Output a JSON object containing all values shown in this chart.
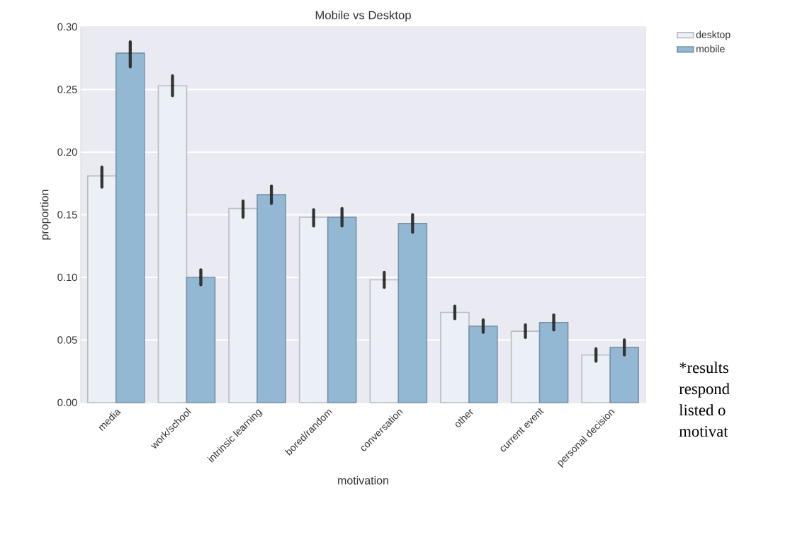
{
  "chart_data": {
    "type": "bar",
    "title": "Mobile vs Desktop",
    "xlabel": "motivation",
    "ylabel": "proportion",
    "categories": [
      "media",
      "work/school",
      "intrinsic learning",
      "bored/random",
      "conversation",
      "other",
      "current event",
      "personal decision"
    ],
    "series": [
      {
        "name": "desktop",
        "color": "#eaf0f5",
        "values": [
          0.181,
          0.253,
          0.155,
          0.148,
          0.098,
          0.072,
          0.057,
          0.038
        ],
        "errors": [
          [
            0.172,
            0.188
          ],
          [
            0.245,
            0.261
          ],
          [
            0.148,
            0.161
          ],
          [
            0.141,
            0.154
          ],
          [
            0.092,
            0.104
          ],
          [
            0.067,
            0.077
          ],
          [
            0.052,
            0.062
          ],
          [
            0.033,
            0.043
          ]
        ]
      },
      {
        "name": "mobile",
        "color": "#92b8d3",
        "values": [
          0.279,
          0.1,
          0.166,
          0.148,
          0.143,
          0.061,
          0.064,
          0.044
        ],
        "errors": [
          [
            0.268,
            0.288
          ],
          [
            0.094,
            0.106
          ],
          [
            0.159,
            0.173
          ],
          [
            0.141,
            0.155
          ],
          [
            0.136,
            0.15
          ],
          [
            0.056,
            0.066
          ],
          [
            0.058,
            0.07
          ],
          [
            0.038,
            0.05
          ]
        ]
      }
    ],
    "ylim": [
      0,
      0.3
    ],
    "yticks": [
      {
        "value": 0,
        "label": "0.00"
      },
      {
        "value": 0.05,
        "label": "0.05"
      },
      {
        "value": 0.1,
        "label": "0.10"
      },
      {
        "value": 0.15,
        "label": "0.15"
      },
      {
        "value": 0.2,
        "label": "0.20"
      },
      {
        "value": 0.25,
        "label": "0.25"
      },
      {
        "value": 0.3,
        "label": "0.30"
      }
    ],
    "grid": "y",
    "legend": "top right",
    "annotations": [
      "*results",
      "respond",
      "listed o",
      "motivat"
    ]
  }
}
